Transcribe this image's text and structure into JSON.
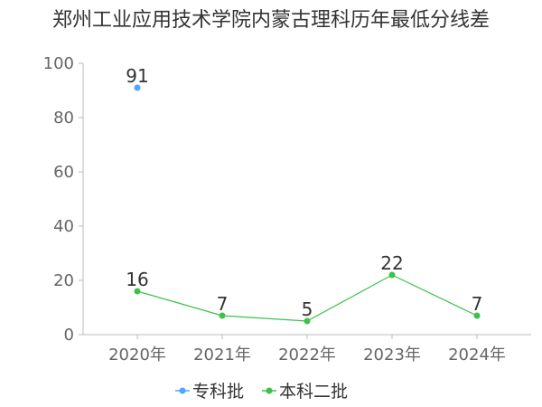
{
  "chart_data": {
    "type": "line",
    "title": "郑州工业应用技术学院内蒙古理科历年最低分线差",
    "categories": [
      "2020年",
      "2021年",
      "2022年",
      "2023年",
      "2024年"
    ],
    "ylim": [
      0,
      100
    ],
    "yticks": [
      0,
      20,
      40,
      60,
      80,
      100
    ],
    "grid": false,
    "legend_position": "bottom",
    "series": [
      {
        "name": "专科批",
        "color": "#4da6ff",
        "values": [
          91,
          null,
          null,
          null,
          null
        ]
      },
      {
        "name": "本科二批",
        "color": "#3cc24a",
        "values": [
          16,
          7,
          5,
          22,
          7
        ]
      }
    ]
  }
}
